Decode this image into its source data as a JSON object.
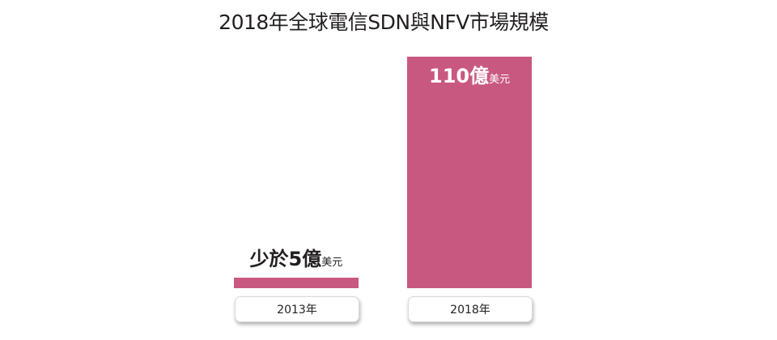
{
  "title": "2018年全球電信SDN與NFV市場規模",
  "colors": {
    "bar": "#c95880",
    "label_on_bar": "#ffffff",
    "label_above_bar": "#231f20"
  },
  "chart_data": {
    "type": "bar",
    "title": "2018年全球電信SDN與NFV市場規模",
    "xlabel": "",
    "ylabel": "",
    "ylim": [
      0,
      110
    ],
    "grid": false,
    "categories": [
      "2013年",
      "2018年"
    ],
    "values": [
      5,
      110
    ],
    "data_labels": [
      {
        "prefix": "少於",
        "number": "5",
        "unit_main": "億",
        "unit_sub": "美元"
      },
      {
        "prefix": "",
        "number": "110",
        "unit_main": "億",
        "unit_sub": "美元"
      }
    ]
  }
}
